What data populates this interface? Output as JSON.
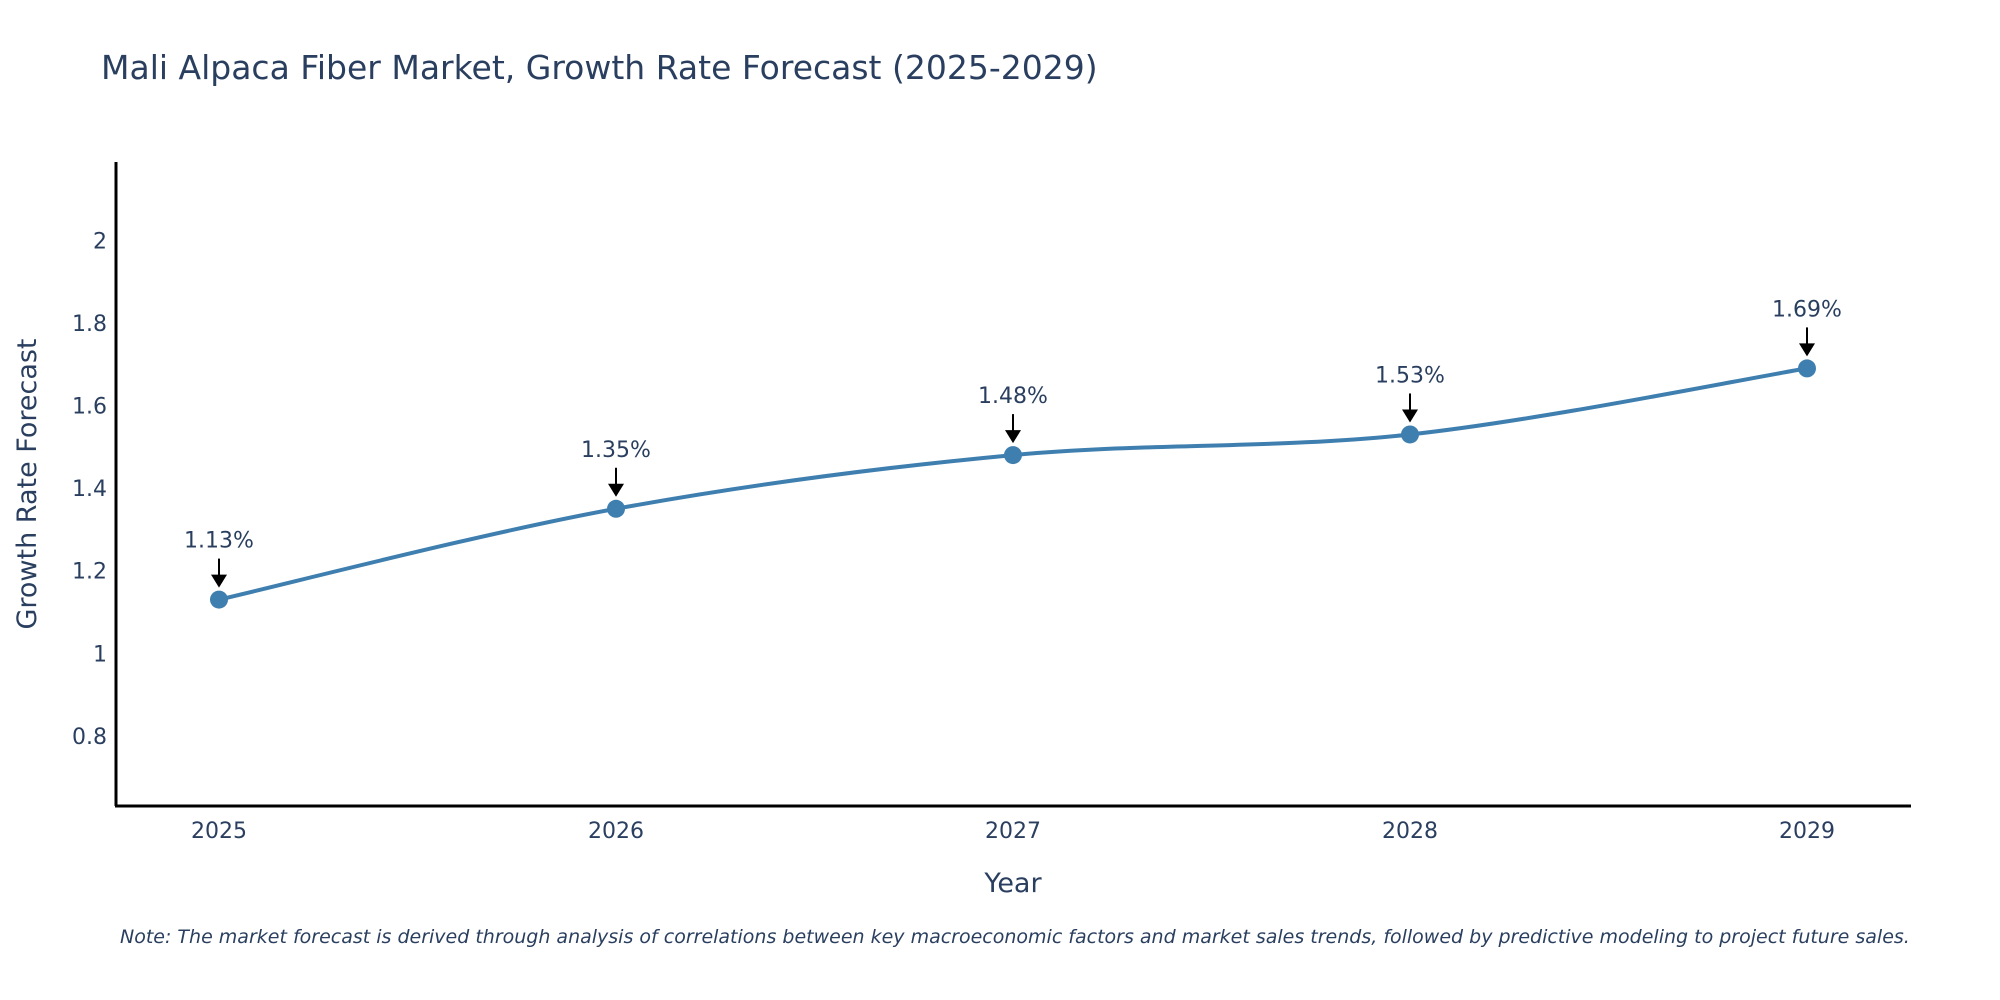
{
  "chart_data": {
    "type": "line",
    "title": "Mali Alpaca Fiber Market, Growth Rate Forecast (2025-2029)",
    "xlabel": "Year",
    "ylabel": "Growth Rate Forecast",
    "categories": [
      "2025",
      "2026",
      "2027",
      "2028",
      "2029"
    ],
    "series": [
      {
        "name": "Growth Rate Forecast",
        "values": [
          1.13,
          1.35,
          1.48,
          1.53,
          1.69
        ],
        "color": "#3f7fb0",
        "line_shape": "spline",
        "markers": true
      }
    ],
    "annotations": [
      "1.13%",
      "1.35%",
      "1.48%",
      "1.53%",
      "1.69%"
    ],
    "ylim": [
      0.63,
      2.19
    ],
    "yticks": [
      0.8,
      1,
      1.2,
      1.4,
      1.6,
      1.8,
      2
    ],
    "ytick_labels": [
      "0.8",
      "1",
      "1.2",
      "1.4",
      "1.6",
      "1.8",
      "2"
    ],
    "grid": false,
    "legend": "none"
  },
  "note": "Note: The market forecast is derived through analysis of correlations between key macroeconomic factors and market sales trends, followed by predictive modeling to project future sales."
}
